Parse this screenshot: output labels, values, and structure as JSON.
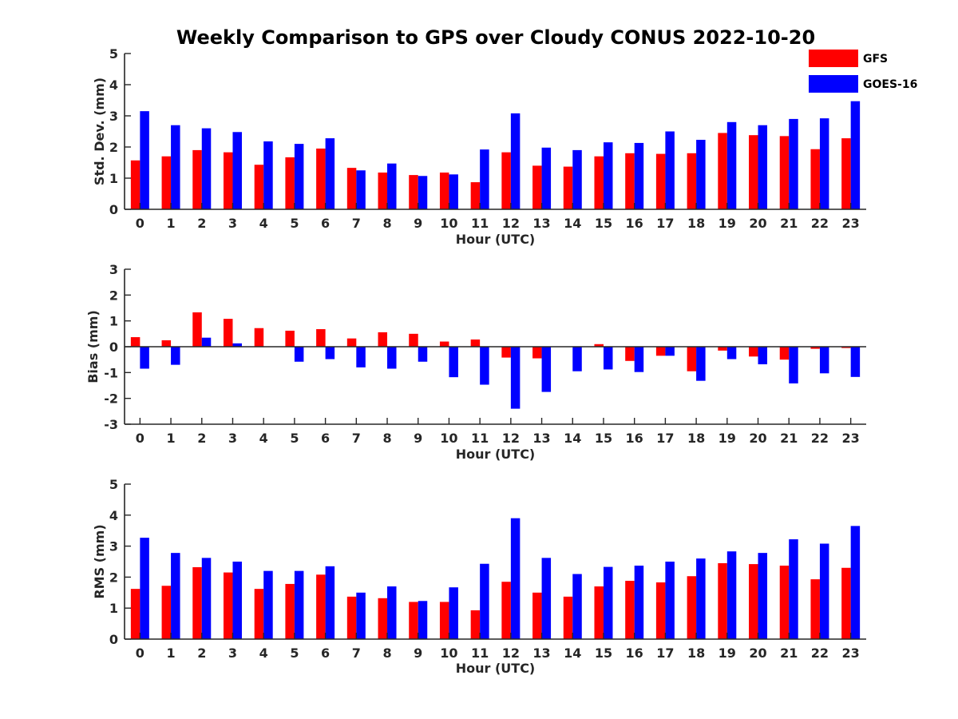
{
  "chart_data": {
    "type": "bar",
    "title": "Weekly Comparison to GPS over Cloudy CONUS 2022-10-20",
    "categories": [
      "0",
      "1",
      "2",
      "3",
      "4",
      "5",
      "6",
      "7",
      "8",
      "9",
      "10",
      "11",
      "12",
      "13",
      "14",
      "15",
      "16",
      "17",
      "18",
      "19",
      "20",
      "21",
      "22",
      "23"
    ],
    "colors": {
      "GFS": "#ff0000",
      "GOES-16": "#0000ff"
    },
    "legend": {
      "position": "top-right",
      "entries": [
        "GFS",
        "GOES-16"
      ]
    },
    "panels": [
      {
        "ylabel": "Std. Dev. (mm)",
        "xlabel": "Hour (UTC)",
        "ylim": [
          0,
          5
        ],
        "yticks": [
          "0",
          "1",
          "2",
          "3",
          "4",
          "5"
        ],
        "series": [
          {
            "name": "GFS",
            "values": [
              1.57,
              1.7,
              1.9,
              1.83,
              1.43,
              1.67,
              1.95,
              1.33,
              1.18,
              1.1,
              1.18,
              0.87,
              1.83,
              1.4,
              1.37,
              1.7,
              1.8,
              1.78,
              1.8,
              2.45,
              2.38,
              2.35,
              1.93,
              2.28
            ]
          },
          {
            "name": "GOES-16",
            "values": [
              3.15,
              2.7,
              2.6,
              2.48,
              2.18,
              2.1,
              2.28,
              1.25,
              1.47,
              1.07,
              1.12,
              1.92,
              3.08,
              1.98,
              1.9,
              2.15,
              2.13,
              2.5,
              2.23,
              2.8,
              2.7,
              2.9,
              2.92,
              3.47
            ]
          }
        ]
      },
      {
        "ylabel": "Bias (mm)",
        "xlabel": "Hour (UTC)",
        "ylim": [
          -3,
          3
        ],
        "yticks": [
          "-3",
          "-2",
          "-1",
          "0",
          "1",
          "2",
          "3"
        ],
        "series": [
          {
            "name": "GFS",
            "values": [
              0.37,
              0.25,
              1.33,
              1.08,
              0.72,
              0.62,
              0.68,
              0.32,
              0.56,
              0.5,
              0.2,
              0.28,
              -0.42,
              -0.45,
              0.0,
              0.1,
              -0.55,
              -0.35,
              -0.95,
              -0.15,
              -0.38,
              -0.5,
              -0.08,
              -0.05
            ]
          },
          {
            "name": "GOES-16",
            "values": [
              -0.85,
              -0.7,
              0.35,
              0.13,
              0.0,
              -0.58,
              -0.48,
              -0.8,
              -0.85,
              -0.58,
              -1.18,
              -1.47,
              -2.4,
              -1.75,
              -0.95,
              -0.88,
              -0.98,
              -0.35,
              -1.32,
              -0.48,
              -0.68,
              -1.42,
              -1.03,
              -1.17
            ]
          }
        ]
      },
      {
        "ylabel": "RMS (mm)",
        "xlabel": "Hour (UTC)",
        "ylim": [
          0,
          5
        ],
        "yticks": [
          "0",
          "1",
          "2",
          "3",
          "4",
          "5"
        ],
        "series": [
          {
            "name": "GFS",
            "values": [
              1.62,
              1.72,
              2.32,
              2.15,
              1.62,
              1.78,
              2.08,
              1.37,
              1.32,
              1.2,
              1.2,
              0.93,
              1.85,
              1.5,
              1.37,
              1.7,
              1.88,
              1.83,
              2.03,
              2.45,
              2.42,
              2.37,
              1.93,
              2.3
            ]
          },
          {
            "name": "GOES-16",
            "values": [
              3.27,
              2.78,
              2.62,
              2.5,
              2.2,
              2.2,
              2.35,
              1.5,
              1.7,
              1.23,
              1.67,
              2.43,
              3.9,
              2.62,
              2.1,
              2.33,
              2.37,
              2.5,
              2.6,
              2.83,
              2.78,
              3.22,
              3.08,
              3.65
            ]
          }
        ]
      }
    ]
  }
}
